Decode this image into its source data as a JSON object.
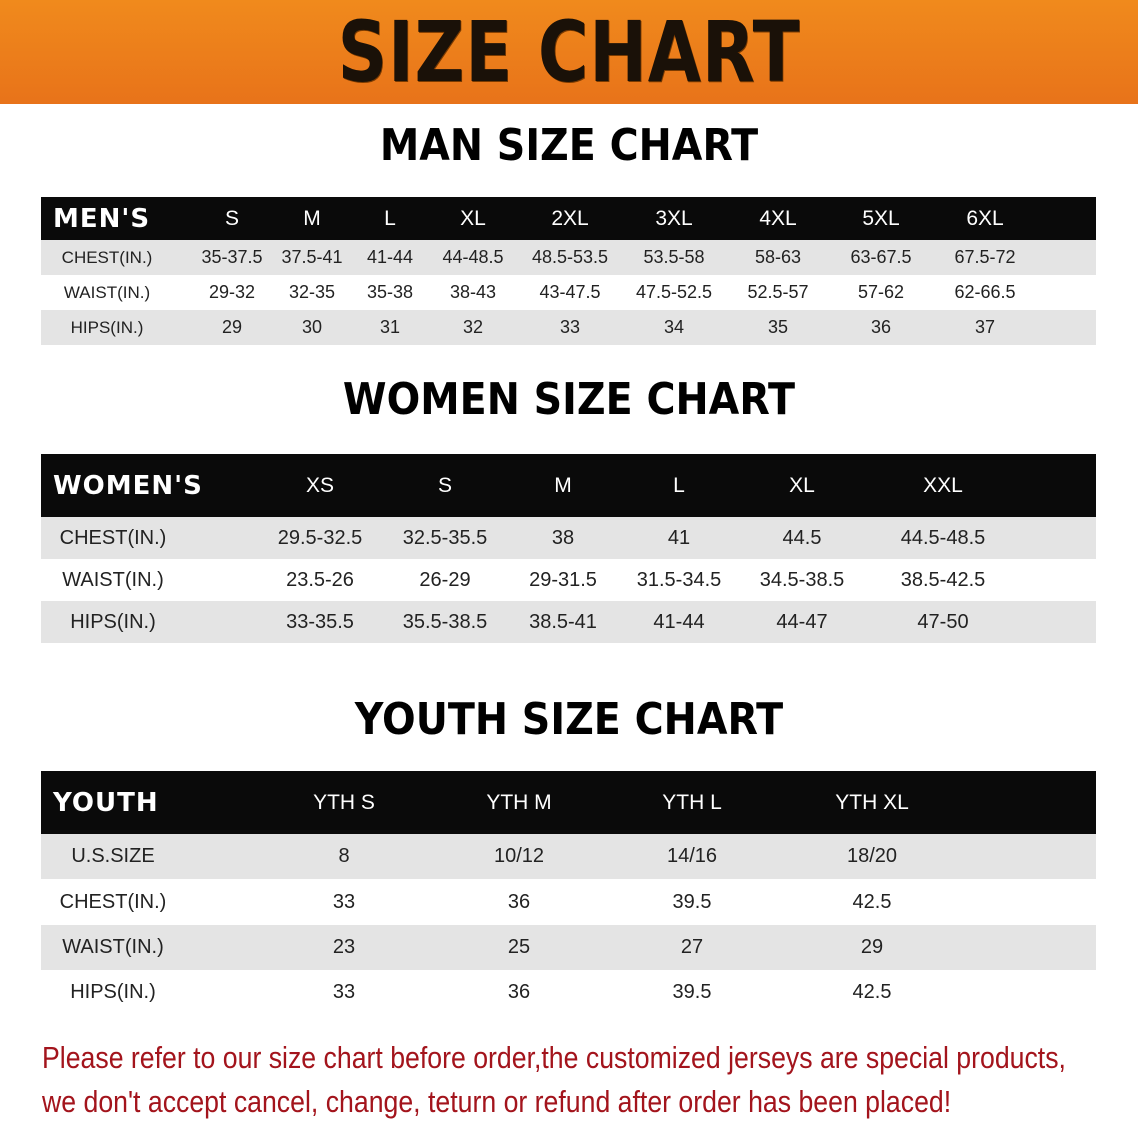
{
  "banner": {
    "title": "SIZE CHART",
    "color": "#ee8120"
  },
  "men": {
    "title": "MAN SIZE CHART",
    "header": [
      "MEN'S",
      "S",
      "M",
      "L",
      "XL",
      "2XL",
      "3XL",
      "4XL",
      "5XL",
      "6XL"
    ],
    "rows": [
      [
        "CHEST(IN.)",
        "35-37.5",
        "37.5-41",
        "41-44",
        "44-48.5",
        "48.5-53.5",
        "53.5-58",
        "58-63",
        "63-67.5",
        "67.5-72"
      ],
      [
        "WAIST(IN.)",
        "29-32",
        "32-35",
        "35-38",
        "38-43",
        "43-47.5",
        "47.5-52.5",
        "52.5-57",
        "57-62",
        "62-66.5"
      ],
      [
        "HIPS(IN.)",
        "29",
        "30",
        "31",
        "32",
        "33",
        "34",
        "35",
        "36",
        "37"
      ]
    ]
  },
  "women": {
    "title": "WOMEN SIZE CHART",
    "header": [
      "WOMEN'S",
      "XS",
      "S",
      "M",
      "L",
      "XL",
      "XXL"
    ],
    "rows": [
      [
        "CHEST(IN.)",
        "29.5-32.5",
        "32.5-35.5",
        "38",
        "41",
        "44.5",
        "44.5-48.5"
      ],
      [
        "WAIST(IN.)",
        "23.5-26",
        "26-29",
        "29-31.5",
        "31.5-34.5",
        "34.5-38.5",
        "38.5-42.5"
      ],
      [
        "HIPS(IN.)",
        "33-35.5",
        "35.5-38.5",
        "38.5-41",
        "41-44",
        "44-47",
        "47-50"
      ]
    ]
  },
  "youth": {
    "title": "YOUTH SIZE CHART",
    "header": [
      "YOUTH",
      "YTH S",
      "YTH M",
      "YTH L",
      "YTH XL"
    ],
    "rows": [
      [
        "U.S.SIZE",
        "8",
        "10/12",
        "14/16",
        "18/20"
      ],
      [
        "CHEST(IN.)",
        "33",
        "36",
        "39.5",
        "42.5"
      ],
      [
        "WAIST(IN.)",
        "23",
        "25",
        "27",
        "29"
      ],
      [
        "HIPS(IN.)",
        "33",
        "36",
        "39.5",
        "42.5"
      ]
    ]
  },
  "notice": {
    "line1": "Please refer to our size chart before order,the customized jerseys are special products,",
    "line2": "we don't accept cancel, change, teturn or refund after order has been placed!",
    "color": "#a3141c"
  }
}
